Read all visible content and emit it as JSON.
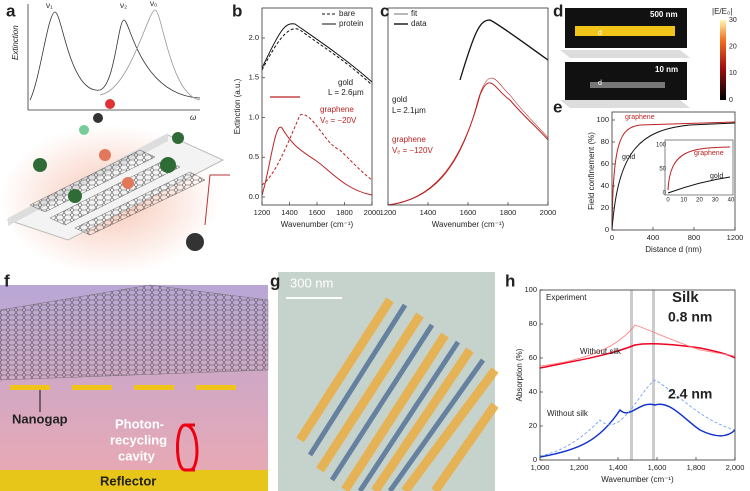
{
  "panels": {
    "a": {
      "label": "a",
      "texts": [
        "Extinction",
        "ω",
        "ν₁",
        "ν₂",
        "ν₀"
      ]
    },
    "b": {
      "label": "b",
      "ylabel": "Extinction (a.u.)",
      "xlabel": "Wavenumber (cm⁻¹)",
      "yticks": [
        "0.0",
        "0.5",
        "1.0",
        "1.5",
        "2.0"
      ],
      "xticks": [
        "1200",
        "1400",
        "1600",
        "1800",
        "2000"
      ],
      "legend": [
        "bare",
        "protein"
      ],
      "texts": [
        "gold",
        "L = 2.6µm",
        "graphene",
        "Vₑ = −20V"
      ]
    },
    "c": {
      "label": "c",
      "xlabel": "Wavenumber (cm⁻¹)",
      "xticks": [
        "1200",
        "1400",
        "1600",
        "1800",
        "2000"
      ],
      "legend": [
        "fit",
        "data"
      ],
      "texts": [
        "gold",
        "L= 2.1µm",
        "graphene",
        "Vₑ = −120V"
      ]
    },
    "d": {
      "label": "d",
      "texts": [
        "500 nm",
        "10 nm",
        "d",
        "d"
      ],
      "colorbar_title": "|E/E₀|",
      "colorbar_ticks": [
        "30",
        "20",
        "10",
        "0"
      ]
    },
    "e": {
      "label": "e",
      "ylabel": "Field confinement (%)",
      "xlabel": "Distance d (nm)",
      "yticks": [
        "0",
        "20",
        "40",
        "60",
        "80",
        "100"
      ],
      "xticks": [
        "0",
        "400",
        "800",
        "1200"
      ],
      "inset_xticks": [
        "0",
        "10",
        "20",
        "30",
        "40"
      ],
      "inset_yticks": [
        "0",
        "50",
        "100"
      ],
      "texts": [
        "graphene",
        "gold",
        "graphene",
        "gold"
      ]
    },
    "f": {
      "label": "f",
      "texts": [
        "Nanogap",
        "Photon-",
        "recycling",
        "cavity",
        "Reflector"
      ]
    },
    "g": {
      "label": "g",
      "scale": "300 nm"
    },
    "h": {
      "label": "h",
      "ylabel": "Absorption (%)",
      "xlabel": "Wavenumber (cm⁻¹)",
      "yticks": [
        "0",
        "20",
        "40",
        "60",
        "80",
        "100"
      ],
      "xticks": [
        "1,000",
        "1,200",
        "1,400",
        "1,600",
        "1,800",
        "2,000"
      ],
      "texts": [
        "Experiment",
        "Silk",
        "0.8 nm",
        "2.4 nm",
        "Without silk",
        "Without silk"
      ]
    }
  }
}
